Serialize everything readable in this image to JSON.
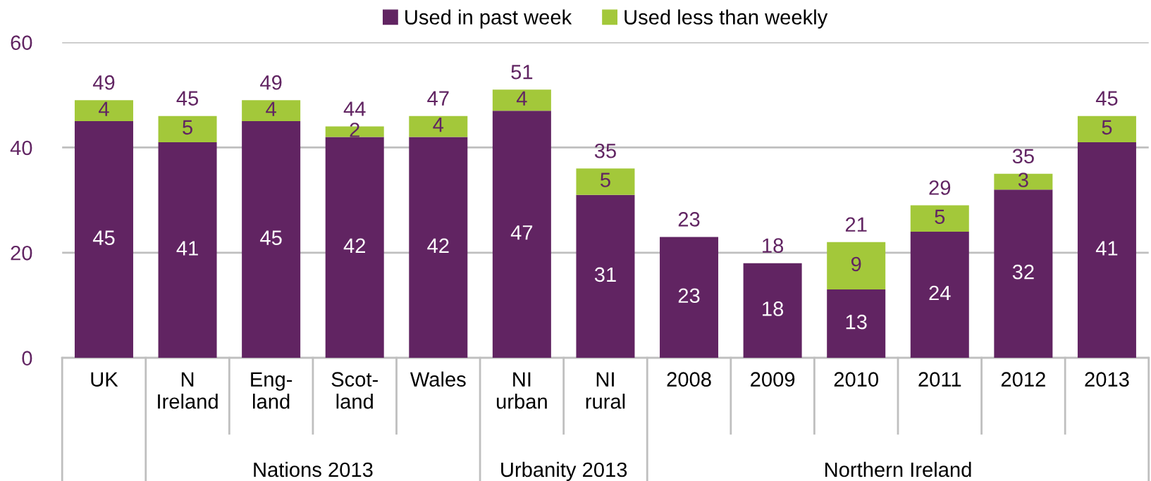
{
  "chart_data": {
    "type": "bar",
    "stacked": true,
    "categories": [
      "UK",
      "N\nIreland",
      "Eng-\nland",
      "Scot-\nland",
      "Wales",
      "NI\nurban",
      "NI\nrural",
      "2008",
      "2009",
      "2010",
      "2011",
      "2012",
      "2013"
    ],
    "series": [
      {
        "name": "Used in past week",
        "color": "#612462",
        "values": [
          45,
          41,
          45,
          42,
          42,
          47,
          31,
          23,
          18,
          13,
          24,
          32,
          41
        ]
      },
      {
        "name": "Used less than weekly",
        "color": "#a3c83a",
        "values": [
          4,
          5,
          4,
          2,
          4,
          4,
          5,
          null,
          null,
          9,
          5,
          3,
          5
        ]
      }
    ],
    "totals": [
      "49",
      "45",
      "49",
      "44",
      "47",
      "51",
      "35",
      "23",
      "18",
      "21",
      "29",
      "35",
      "45"
    ],
    "data_labels": true,
    "ylim": [
      0,
      60
    ],
    "yticks": [
      0,
      20,
      40,
      60
    ],
    "grid": "y",
    "legend": "top",
    "annotations": [
      "Nations 2013",
      "Urbanity 2013",
      "Northern Ireland"
    ]
  }
}
